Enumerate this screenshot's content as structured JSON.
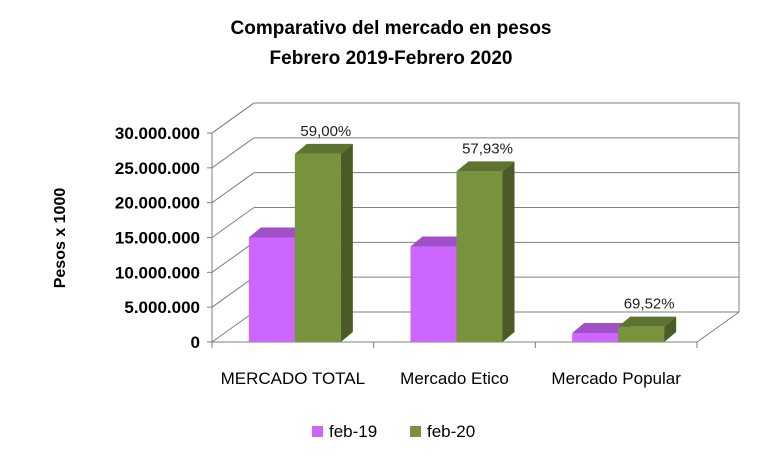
{
  "chart_data": {
    "type": "bar",
    "title": "Comparativo del mercado en pesos",
    "subtitle": "Febrero 2019-Febrero  2020",
    "ylabel": "Pesos x 1000",
    "xlabel": "",
    "categories": [
      "MERCADO TOTAL",
      "Mercado Etico",
      "Mercado Popular"
    ],
    "series": [
      {
        "name": "feb-19",
        "color": "#cc66ff",
        "values": [
          15000000,
          13700000,
          1300000
        ]
      },
      {
        "name": "feb-20",
        "color": "#77933c",
        "values": [
          27000000,
          24500000,
          2200000
        ]
      }
    ],
    "data_labels": [
      "59,00%",
      "57,93%",
      "69,52%"
    ],
    "ylim": [
      0,
      30000000
    ],
    "yticks": [
      "0",
      "5.000.000",
      "10.000.000",
      "15.000.000",
      "20.000.000",
      "25.000.000",
      "30.000.000"
    ],
    "grid": true,
    "legend": "bottom",
    "style": "3d-clustered-column"
  }
}
